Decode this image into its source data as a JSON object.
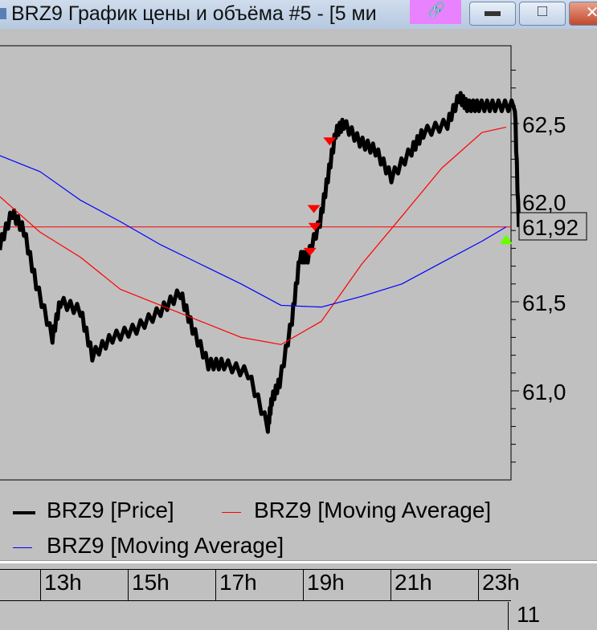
{
  "window": {
    "title": "BRZ9 График цены и объёма #5 - [5 ми",
    "link_icon": "link-icon",
    "buttons": [
      "minimize",
      "maximize",
      "close"
    ]
  },
  "chart_data": {
    "type": "line",
    "xlabel": "",
    "ylabel": "",
    "x_ticks": [
      "13h",
      "15h",
      "17h",
      "19h",
      "21h",
      "23h"
    ],
    "x_tick_hours": [
      13,
      15,
      17,
      19,
      21,
      23
    ],
    "bottom_label": "11",
    "y_ticks": [
      "61,0",
      "61,5",
      "62,0",
      "62,5"
    ],
    "y_tick_values": [
      61.0,
      61.5,
      62.0,
      62.5
    ],
    "ylim": [
      60.5,
      62.9
    ],
    "xlim": [
      12.08,
      23.75
    ],
    "last_price_label": "61,92",
    "last_price": 61.92,
    "grid": false,
    "legend_position": "bottom",
    "series": [
      {
        "name": "BRZ9 [Price]",
        "color": "#000000",
        "x": [
          12.08,
          12.36,
          12.63,
          12.91,
          13.28,
          13.46,
          13.92,
          14.19,
          14.65,
          15.2,
          15.75,
          16.2,
          16.48,
          16.84,
          17.2,
          17.75,
          18.2,
          18.29,
          18.47,
          18.75,
          18.93,
          19.11,
          19.39,
          19.57,
          19.75,
          19.93,
          20.3,
          20.66,
          21.02,
          21.48,
          21.75,
          22.3,
          22.57,
          22.75,
          23.02,
          23.39,
          23.84,
          23.93
        ],
        "y": [
          61.82,
          62.0,
          61.9,
          61.6,
          61.3,
          61.5,
          61.45,
          61.2,
          61.3,
          61.35,
          61.45,
          61.55,
          61.35,
          61.15,
          61.15,
          61.1,
          60.8,
          60.95,
          61.05,
          61.4,
          61.75,
          61.75,
          61.95,
          62.2,
          62.45,
          62.5,
          62.4,
          62.35,
          62.2,
          62.35,
          62.45,
          62.5,
          62.65,
          62.6,
          62.6,
          62.6,
          62.6,
          61.92
        ]
      },
      {
        "name": "BRZ9 [Moving Average]",
        "color": "#ff0000",
        "x": [
          12.08,
          13,
          13.92,
          14.83,
          15.75,
          16.67,
          17.59,
          18.5,
          19.42,
          20.34,
          21.26,
          22.17,
          23.09,
          23.64
        ],
        "y": [
          62.09,
          61.89,
          61.75,
          61.57,
          61.48,
          61.39,
          61.3,
          61.26,
          61.39,
          61.71,
          61.98,
          62.25,
          62.45,
          62.48
        ]
      },
      {
        "name": "BRZ9 [Moving Average]",
        "color": "#0000ff",
        "x": [
          12.08,
          13,
          13.92,
          14.83,
          15.75,
          16.67,
          17.59,
          18.5,
          19.42,
          20.34,
          21.26,
          22.17,
          23.09,
          23.64
        ],
        "y": [
          62.32,
          62.23,
          62.07,
          61.95,
          61.82,
          61.71,
          61.6,
          61.48,
          61.47,
          61.53,
          61.6,
          61.72,
          61.84,
          61.92
        ]
      }
    ],
    "reference_line": {
      "y": 61.92,
      "color": "#ff0000"
    },
    "sell_markers": {
      "color": "#ff0000",
      "x": [
        19.61,
        19.25,
        19.27,
        19.16
      ],
      "y": [
        62.4,
        62.02,
        61.92,
        61.78
      ]
    },
    "buy_markers": {
      "color": "#66ff00",
      "x": [
        23.64
      ],
      "y": [
        61.85
      ]
    }
  }
}
